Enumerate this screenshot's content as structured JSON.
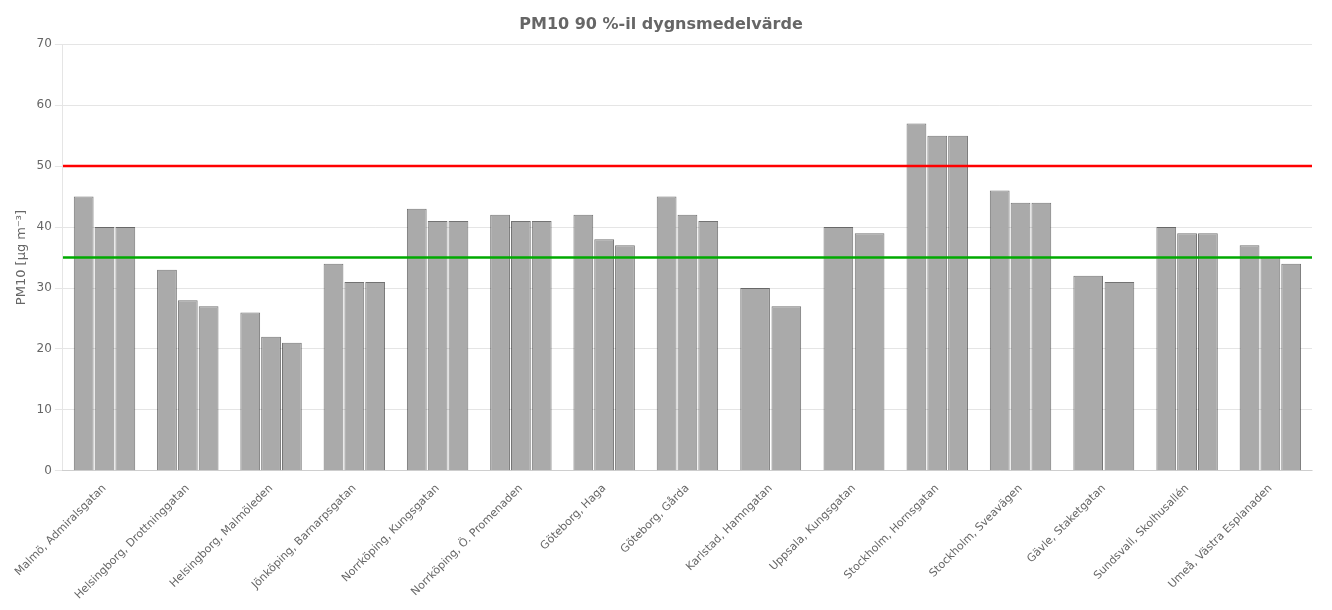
{
  "chart_data": {
    "type": "bar",
    "title": "PM10 90 %-il dygnsmedelvärde",
    "ylabel": "PM10 [µg m⁻³]",
    "categories": [
      "Malmö, Admiralsgatan",
      "Helsingborg, Drottninggatan",
      "Helsingborg, Malmöleden",
      "Jönköping, Barnarpsgatan",
      "Norrköping, Kungsgatan",
      "Norrköping, Ö. Promenaden",
      "Göteborg, Haga",
      "Göteborg, Gårda",
      "Karlstad, Hamngatan",
      "Uppsala, Kungsgatan",
      "Stockholm, Hornsgatan",
      "Stockholm, Sveavägen",
      "Gävle, Staketgatan",
      "Sundsvall, Skolhusallén",
      "Umeå, Västra Esplanaden"
    ],
    "series": [
      {
        "color": "#aaaaaa",
        "values": [
          45,
          33,
          26,
          34,
          43,
          42,
          42,
          45,
          30,
          40,
          57,
          46,
          32,
          40,
          37
        ]
      },
      {
        "color": "#aaaaaa",
        "values": [
          40,
          28,
          22,
          31,
          41,
          41,
          38,
          42,
          27,
          39,
          55,
          44,
          31,
          39,
          35
        ]
      },
      {
        "color": "#aaaaaa",
        "values": [
          40,
          27,
          21,
          31,
          41,
          41,
          37,
          41,
          null,
          null,
          55,
          44,
          null,
          39,
          34
        ]
      }
    ],
    "hlines": [
      {
        "y": 50,
        "color": "red"
      },
      {
        "y": 35,
        "color": "#00aa00"
      }
    ],
    "ylim": [
      0,
      70
    ],
    "yticks": [
      0,
      10,
      20,
      30,
      40,
      50,
      60,
      70
    ],
    "grid": true
  }
}
